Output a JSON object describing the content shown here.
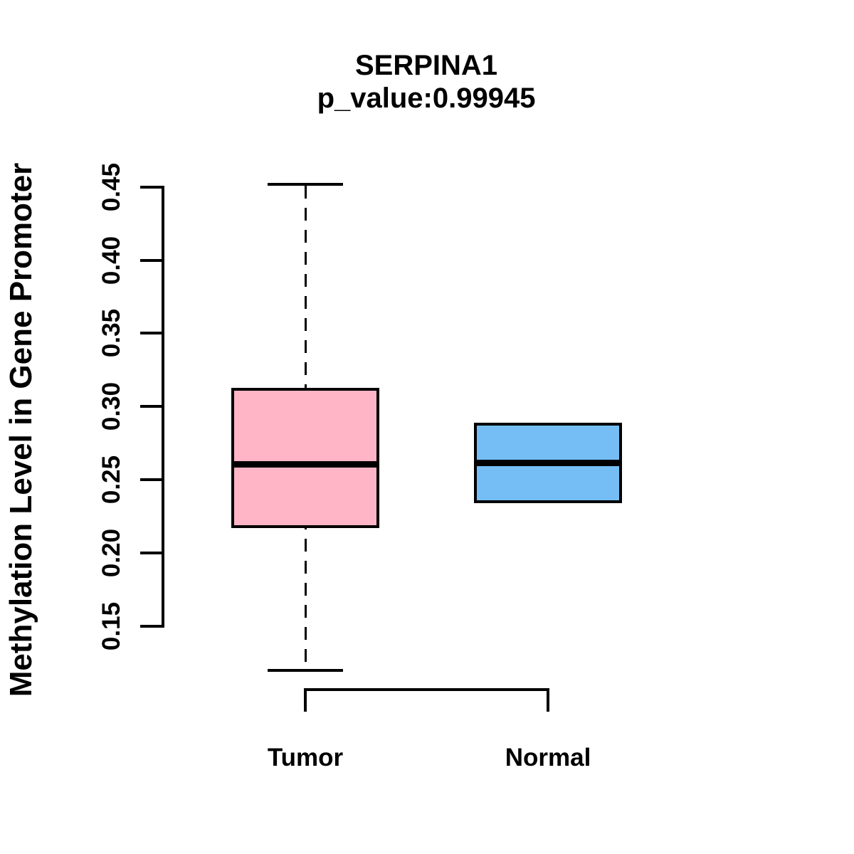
{
  "title": "SERPINA1",
  "subtitle": "p_value:0.99945",
  "y_axis": {
    "label": "Methylation Level in Gene Promoter",
    "ticks": [
      {
        "label": "0.45",
        "value": 0.45
      },
      {
        "label": "0.40",
        "value": 0.4
      },
      {
        "label": "0.35",
        "value": 0.35
      },
      {
        "label": "0.30",
        "value": 0.3
      },
      {
        "label": "0.25",
        "value": 0.25
      },
      {
        "label": "0.20",
        "value": 0.2
      },
      {
        "label": "0.15",
        "value": 0.15
      }
    ]
  },
  "chart_data": {
    "type": "boxplot",
    "title": "SERPINA1",
    "subtitle": "p_value:0.99945",
    "ylabel": "Methylation Level in Gene Promoter",
    "xlabel": "",
    "ylim": [
      0.15,
      0.45
    ],
    "y_ticks": [
      0.15,
      0.2,
      0.25,
      0.3,
      0.35,
      0.4,
      0.45
    ],
    "grid": false,
    "categories": [
      "Tumor",
      "Normal"
    ],
    "groups": [
      {
        "label": "Tumor",
        "fill_color": "#FFB5C5",
        "whisker_low": 0.12,
        "q1": 0.218,
        "median": 0.261,
        "q3": 0.312,
        "whisker_high": 0.452
      },
      {
        "label": "Normal",
        "fill_color": "#75BEF5",
        "whisker_low": 0.235,
        "q1": 0.235,
        "median": 0.262,
        "q3": 0.288,
        "whisker_high": 0.288
      }
    ],
    "colors": {
      "line": "#000000",
      "background": "#ffffff"
    }
  }
}
